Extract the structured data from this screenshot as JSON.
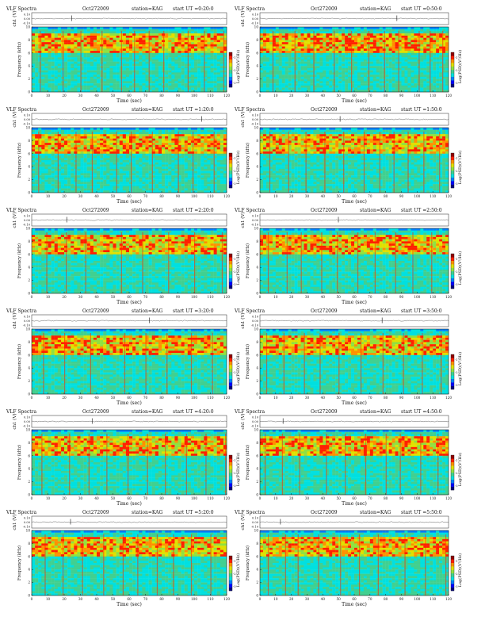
{
  "figure": {
    "title_prefix": "VLF Spectra",
    "date": "Oct272009",
    "station": "station=KAG",
    "channel_ylabel": "ch1 (V)",
    "freq_ylabel": "Frequency (kHz)",
    "xlabel": "Time (sec)",
    "colorbar_label": "Log(PSD)(V²/Hz)",
    "channel_ticks": [
      "0.10",
      "0.00",
      "-0.10"
    ],
    "colorbar_ticks": [
      "-1",
      "-2",
      "-3"
    ]
  },
  "chart_data": [
    {
      "type": "heatmap",
      "title": "VLF Spectra  Oct272009  station=KAG  start UT =0:20:0",
      "start": "start UT =0:20:0",
      "xlabel": "Time (sec)",
      "ylabel": "Frequency (kHz)",
      "xlim": [
        0,
        120
      ],
      "ylim": [
        0,
        10
      ],
      "x_ticks": [
        0,
        10,
        20,
        30,
        40,
        50,
        60,
        70,
        80,
        90,
        100,
        110,
        120
      ],
      "y_ticks": [
        0,
        2,
        4,
        6,
        8,
        10
      ],
      "intense_band_khz": [
        6,
        9
      ],
      "spike_times_sec": [
        5,
        19,
        30,
        43,
        55,
        63,
        72,
        81,
        96,
        106,
        118
      ]
    },
    {
      "type": "heatmap",
      "title": "VLF Spectra  Oct272009  station=KAG  start UT =0:50:0",
      "start": "start UT =0:50:0",
      "xlabel": "Time (sec)",
      "ylabel": "Frequency (kHz)",
      "xlim": [
        0,
        120
      ],
      "ylim": [
        0,
        10
      ],
      "x_ticks": [
        0,
        10,
        20,
        30,
        40,
        50,
        60,
        70,
        80,
        90,
        100,
        110,
        120
      ],
      "y_ticks": [
        0,
        2,
        4,
        6,
        8,
        10
      ],
      "intense_band_khz": [
        6,
        9
      ],
      "spike_times_sec": [
        8,
        22,
        34,
        47,
        58,
        69,
        79,
        88,
        101,
        108,
        116
      ]
    },
    {
      "type": "heatmap",
      "title": "VLF Spectra  Oct272009  station=KAG  start UT =1:20:0",
      "start": "start UT =1:20:0",
      "xlabel": "Time (sec)",
      "ylabel": "Frequency (kHz)",
      "xlim": [
        0,
        120
      ],
      "ylim": [
        0,
        10
      ],
      "x_ticks": [
        0,
        10,
        20,
        30,
        40,
        50,
        60,
        70,
        80,
        90,
        100,
        110,
        120
      ],
      "y_ticks": [
        0,
        2,
        4,
        6,
        8,
        10
      ],
      "intense_band_khz": [
        6,
        9
      ],
      "spike_times_sec": [
        4,
        16,
        27,
        37,
        52,
        61,
        74,
        90,
        99,
        112
      ]
    },
    {
      "type": "heatmap",
      "title": "VLF Spectra  Oct272009  station=KAG  start UT =1:50:0",
      "start": "start UT =1:50:0",
      "xlabel": "Time (sec)",
      "ylabel": "Frequency (kHz)",
      "xlim": [
        0,
        120
      ],
      "ylim": [
        0,
        10
      ],
      "x_ticks": [
        0,
        10,
        20,
        30,
        40,
        50,
        60,
        70,
        80,
        90,
        100,
        110,
        120
      ],
      "y_ticks": [
        0,
        2,
        4,
        6,
        8,
        10
      ],
      "intense_band_khz": [
        6,
        9
      ],
      "spike_times_sec": [
        6,
        18,
        29,
        41,
        53,
        66,
        76,
        85,
        94,
        104,
        114
      ]
    },
    {
      "type": "heatmap",
      "title": "VLF Spectra  Oct272009  station=KAG  start UT =2:20:0",
      "start": "start UT =2:20:0",
      "xlabel": "Time (sec)",
      "ylabel": "Frequency (kHz)",
      "xlim": [
        0,
        120
      ],
      "ylim": [
        0,
        10
      ],
      "x_ticks": [
        0,
        10,
        20,
        30,
        40,
        50,
        60,
        70,
        80,
        90,
        100,
        110,
        120
      ],
      "y_ticks": [
        0,
        2,
        4,
        6,
        8,
        10
      ],
      "intense_band_khz": [
        6,
        9
      ],
      "spike_times_sec": [
        9,
        21,
        33,
        55,
        68,
        84,
        100,
        117
      ]
    },
    {
      "type": "heatmap",
      "title": "VLF Spectra  Oct272009  station=KAG  start UT =2:50:0",
      "start": "start UT =2:50:0",
      "xlabel": "Time (sec)",
      "ylabel": "Frequency (kHz)",
      "xlim": [
        0,
        120
      ],
      "ylim": [
        0,
        10
      ],
      "x_ticks": [
        0,
        10,
        20,
        30,
        40,
        50,
        60,
        70,
        80,
        90,
        100,
        110,
        120
      ],
      "y_ticks": [
        0,
        2,
        4,
        6,
        8,
        10
      ],
      "intense_band_khz": [
        6,
        9
      ],
      "spike_times_sec": [
        5,
        17,
        26,
        39,
        49,
        62,
        73,
        86,
        97,
        109
      ]
    },
    {
      "type": "heatmap",
      "title": "VLF Spectra  Oct272009  station=KAG  start UT =3:20:0",
      "start": "start UT =3:20:0",
      "xlabel": "Time (sec)",
      "ylabel": "Frequency (kHz)",
      "xlim": [
        0,
        120
      ],
      "ylim": [
        0,
        10
      ],
      "x_ticks": [
        0,
        10,
        20,
        30,
        40,
        50,
        60,
        70,
        80,
        90,
        100,
        110,
        120
      ],
      "y_ticks": [
        0,
        2,
        4,
        6,
        8,
        10
      ],
      "intense_band_khz": [
        6,
        9
      ],
      "spike_times_sec": [
        7,
        20,
        36,
        57,
        70,
        83,
        98,
        111
      ]
    },
    {
      "type": "heatmap",
      "title": "VLF Spectra  Oct272009  station=KAG  start UT =3:50:0",
      "start": "start UT =3:50:0",
      "xlabel": "Time (sec)",
      "ylabel": "Frequency (kHz)",
      "xlim": [
        0,
        120
      ],
      "ylim": [
        0,
        10
      ],
      "x_ticks": [
        0,
        10,
        20,
        30,
        40,
        50,
        60,
        70,
        80,
        90,
        100,
        110,
        120
      ],
      "y_ticks": [
        0,
        2,
        4,
        6,
        8,
        10
      ],
      "intense_band_khz": [
        6,
        9
      ],
      "spike_times_sec": [
        4,
        15,
        28,
        38,
        50,
        64,
        78,
        91,
        103,
        115
      ]
    },
    {
      "type": "heatmap",
      "title": "VLF Spectra  Oct272009  station=KAG  start UT =4:20:0",
      "start": "start UT =4:20:0",
      "xlabel": "Time (sec)",
      "ylabel": "Frequency (kHz)",
      "xlim": [
        0,
        120
      ],
      "ylim": [
        0,
        10
      ],
      "x_ticks": [
        0,
        10,
        20,
        30,
        40,
        50,
        60,
        70,
        80,
        90,
        100,
        110,
        120
      ],
      "y_ticks": [
        0,
        2,
        4,
        6,
        8,
        10
      ],
      "intense_band_khz": [
        6,
        9
      ],
      "spike_times_sec": [
        6,
        23,
        35,
        46,
        59,
        71,
        82,
        95,
        107,
        119
      ]
    },
    {
      "type": "heatmap",
      "title": "VLF Spectra  Oct272009  station=KAG  start UT =4:50:0",
      "start": "start UT =4:50:0",
      "xlabel": "Time (sec)",
      "ylabel": "Frequency (kHz)",
      "xlim": [
        0,
        120
      ],
      "ylim": [
        0,
        10
      ],
      "x_ticks": [
        0,
        10,
        20,
        30,
        40,
        50,
        60,
        70,
        80,
        90,
        100,
        110,
        120
      ],
      "y_ticks": [
        0,
        2,
        4,
        6,
        8,
        10
      ],
      "intense_band_khz": [
        6,
        9
      ],
      "spike_times_sec": [
        3,
        14,
        25,
        42,
        54,
        67,
        80,
        89,
        102,
        113
      ]
    },
    {
      "type": "heatmap",
      "title": "VLF Spectra  Oct272009  station=KAG  start UT =5:20:0",
      "start": "start UT =5:20:0",
      "xlabel": "Time (sec)",
      "ylabel": "Frequency (kHz)",
      "xlim": [
        0,
        120
      ],
      "ylim": [
        0,
        10
      ],
      "x_ticks": [
        0,
        10,
        20,
        30,
        40,
        50,
        60,
        70,
        80,
        90,
        100,
        110,
        120
      ],
      "y_ticks": [
        0,
        2,
        4,
        6,
        8,
        10
      ],
      "intense_band_khz": [
        6,
        9
      ],
      "spike_times_sec": [
        8,
        19,
        31,
        44,
        56,
        65,
        77,
        87,
        98,
        110
      ]
    },
    {
      "type": "heatmap",
      "title": "VLF Spectra  Oct272009  station=KAG  start UT =5:50:0",
      "start": "start UT =5:50:0",
      "xlabel": "Time (sec)",
      "ylabel": "Frequency (kHz)",
      "xlim": [
        0,
        120
      ],
      "ylim": [
        0,
        10
      ],
      "x_ticks": [
        0,
        10,
        20,
        30,
        40,
        50,
        60,
        70,
        80,
        90,
        100,
        110,
        120
      ],
      "y_ticks": [
        0,
        2,
        4,
        6,
        8,
        10
      ],
      "intense_band_khz": [
        6,
        9
      ],
      "spike_times_sec": [
        5,
        16,
        24,
        37,
        51,
        63,
        75,
        92,
        105,
        118
      ]
    }
  ],
  "colormap": [
    "#00007f",
    "#0000ff",
    "#0080ff",
    "#00e0e0",
    "#40d090",
    "#90e040",
    "#e0e000",
    "#ff9000",
    "#ff2000",
    "#900000"
  ]
}
